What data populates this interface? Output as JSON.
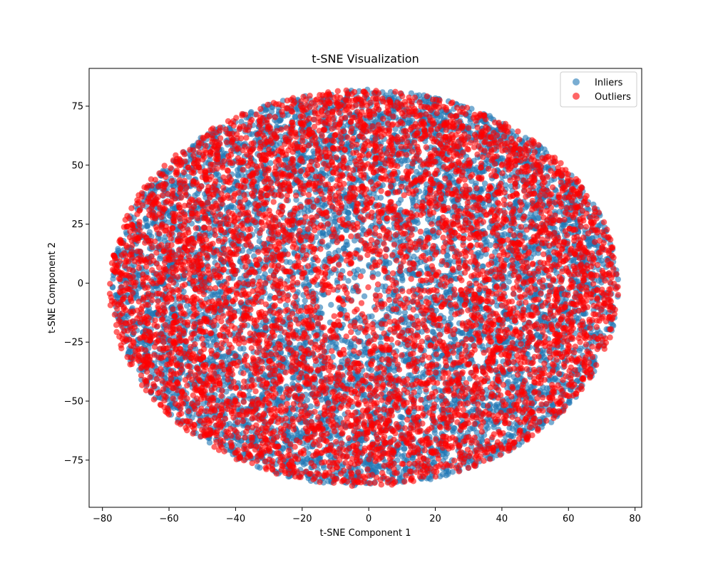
{
  "chart_data": {
    "type": "scatter",
    "title": "t-SNE Visualization",
    "xlabel": "t-SNE Component 1",
    "ylabel": "t-SNE Component 2",
    "xlim": [
      -84,
      82
    ],
    "ylim": [
      -95,
      91
    ],
    "xticks": [
      -80,
      -60,
      -40,
      -20,
      0,
      20,
      40,
      60,
      80
    ],
    "yticks": [
      -75,
      -50,
      -25,
      0,
      25,
      50,
      75
    ],
    "grid": false,
    "legend_position": "top-right",
    "series": [
      {
        "name": "Inliers",
        "color": "#1f77b4",
        "alpha": 0.6,
        "distribution": "dense elliptical cloud",
        "center": [
          0,
          0
        ],
        "x_extent": [
          -77,
          75
        ],
        "y_extent": [
          -86,
          82
        ],
        "approx_points": 7000
      },
      {
        "name": "Outliers",
        "color": "#ff0000",
        "alpha": 0.6,
        "distribution": "dense elliptical cloud overlapping inliers",
        "center": [
          0,
          0
        ],
        "x_extent": [
          -78,
          75
        ],
        "y_extent": [
          -86,
          82
        ],
        "approx_points": 6000
      }
    ]
  }
}
